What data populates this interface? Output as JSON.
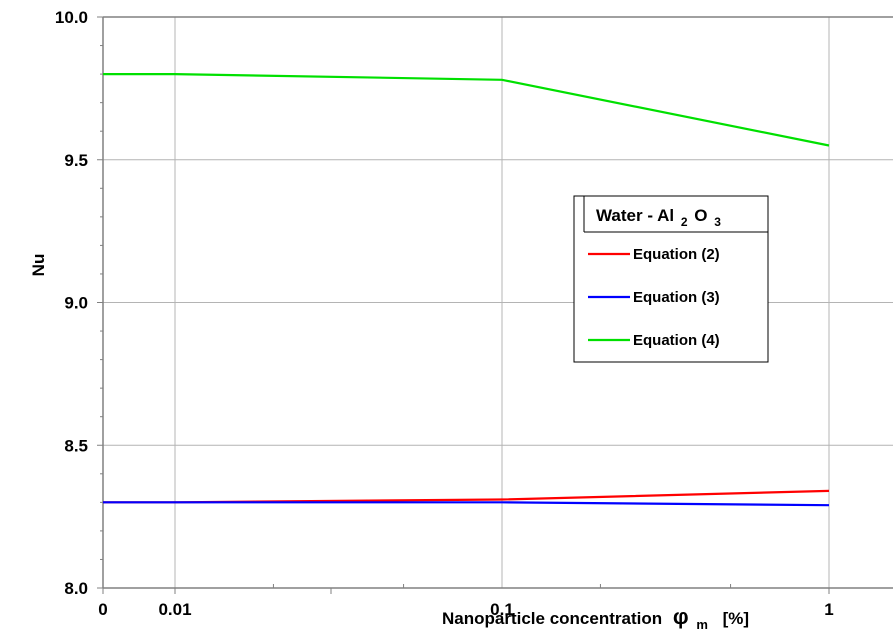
{
  "chart_data": {
    "type": "line",
    "xlabel": "Nanoparticle concentration",
    "xlabel_symbol": "φ",
    "xlabel_subscript": "m",
    "xlabel_unit": "[%]",
    "ylabel": "Nu",
    "ylim": [
      8.0,
      10.0
    ],
    "yticks": [
      "8.0",
      "8.5",
      "9.0",
      "9.5",
      "10.0"
    ],
    "xtick_labels": [
      "0",
      "0.01",
      "0.1",
      "1"
    ],
    "grid": true,
    "legend": {
      "title_main": "Water - Al",
      "title_sub1": "2",
      "title_o": "O",
      "title_sub2": "3",
      "placement": "center-right"
    },
    "x": [
      0,
      0.01,
      0.1,
      1
    ],
    "series": [
      {
        "name": "Equation (2)",
        "color": "#ff0000",
        "values": [
          8.3,
          8.3,
          8.31,
          8.34
        ]
      },
      {
        "name": "Equation (3)",
        "color": "#0000ff",
        "values": [
          8.3,
          8.3,
          8.3,
          8.29
        ]
      },
      {
        "name": "Equation (4)",
        "color": "#00e000",
        "values": [
          9.8,
          9.8,
          9.78,
          9.55
        ]
      }
    ]
  }
}
